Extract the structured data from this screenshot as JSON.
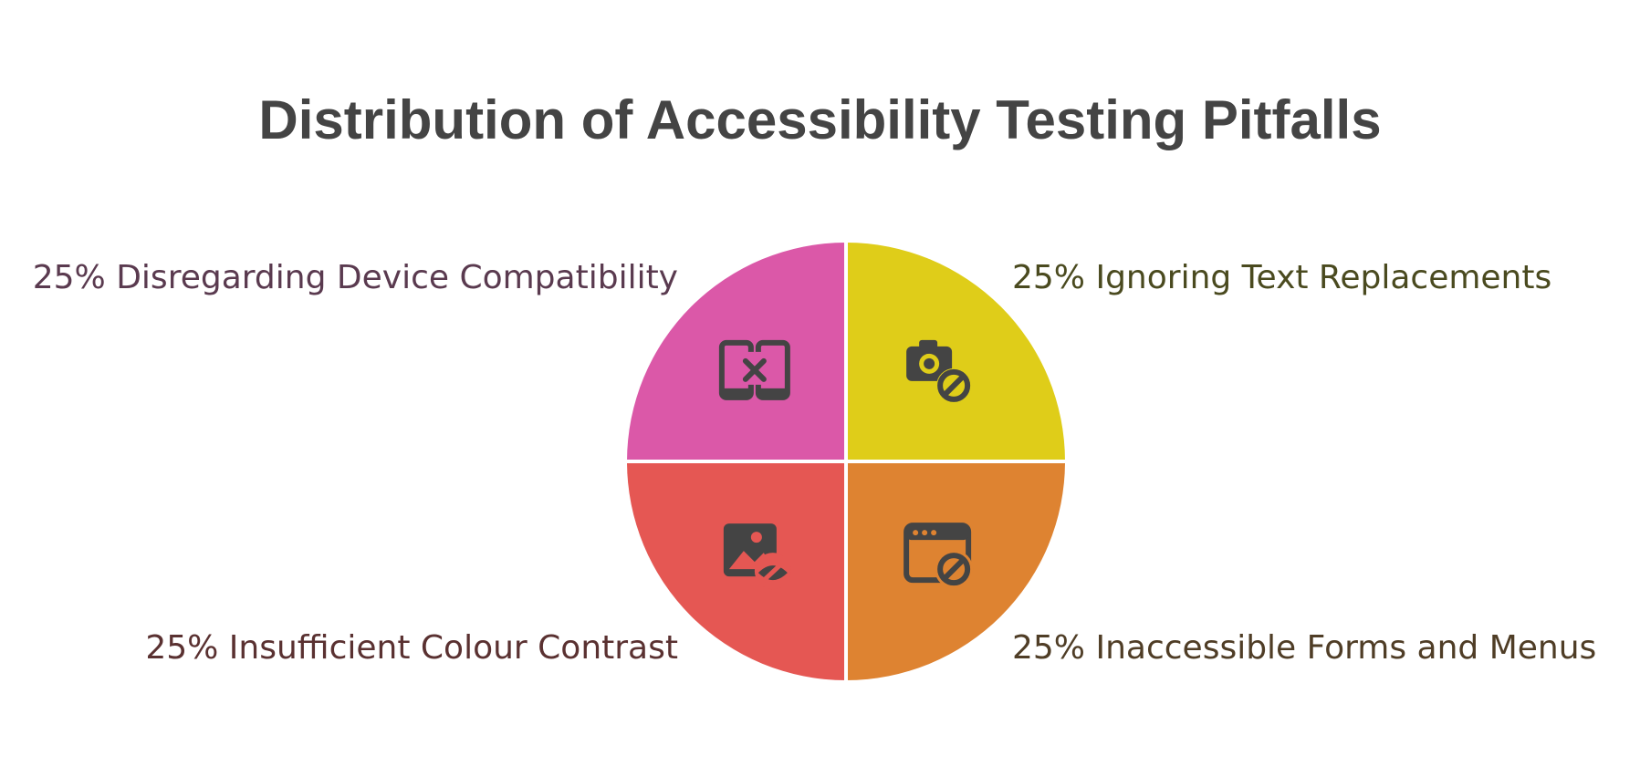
{
  "colors": {
    "background": "#ffffff",
    "title": "#444444",
    "icon": "#444444",
    "divider": "#ffffff"
  },
  "chart_data": {
    "type": "pie",
    "title": "Distribution of Accessibility Testing Pitfalls",
    "slices": [
      {
        "label": "Ignoring Text Replacements",
        "value": 25,
        "display": "25% Ignoring Text Replacements",
        "color": "#DFCD19",
        "text_color": "#4A4A1F",
        "icon": "camera-blocked-icon",
        "position": "top-right"
      },
      {
        "label": "Inaccessible Forms and Menus",
        "value": 25,
        "display": "25% Inaccessible Forms and Menus",
        "color": "#DE8331",
        "text_color": "#4F3D26",
        "icon": "window-blocked-icon",
        "position": "bottom-right"
      },
      {
        "label": "Insufficient Colour Contrast",
        "value": 25,
        "display": "25% Insufficient Colour Contrast",
        "color": "#E55753",
        "text_color": "#5A3131",
        "icon": "image-hidden-icon",
        "position": "bottom-left"
      },
      {
        "label": "Disregarding Device Compatibility",
        "value": 25,
        "display": "25% Disregarding Device Compatibility",
        "color": "#DB58A8",
        "text_color": "#5A3A4F",
        "icon": "devices-x-icon",
        "position": "top-left"
      }
    ]
  }
}
